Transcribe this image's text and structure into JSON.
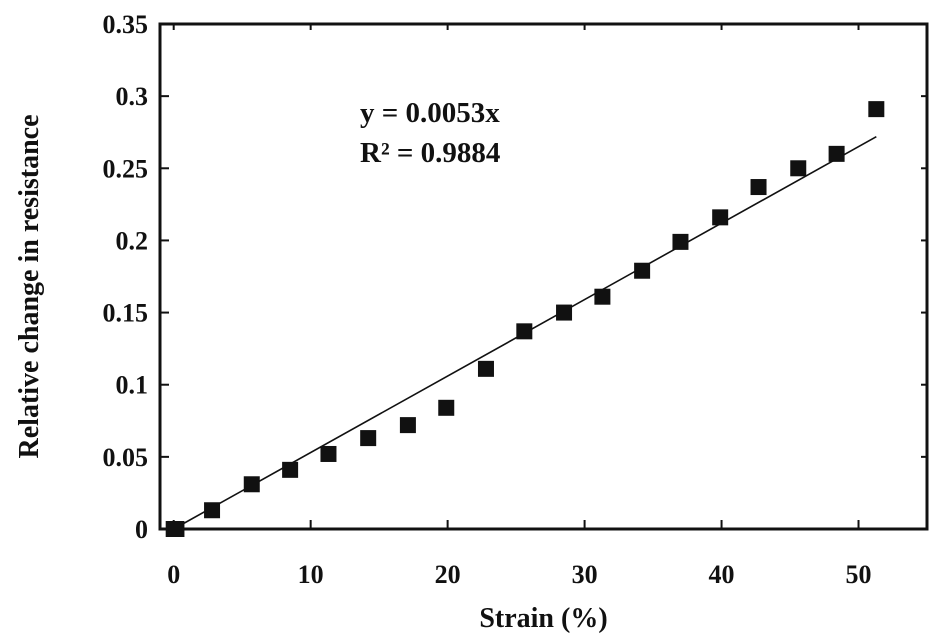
{
  "chart_data": {
    "type": "scatter",
    "title": "",
    "xlabel": "Strain (%)",
    "ylabel": "Relative change in resistance",
    "xlim": [
      -1,
      55
    ],
    "ylim": [
      0,
      0.35
    ],
    "xticks": [
      0,
      10,
      20,
      30,
      40,
      50
    ],
    "xtick_labels": [
      "0",
      "10",
      "20",
      "30",
      "40",
      "50"
    ],
    "yticks": [
      0,
      0.05,
      0.1,
      0.15,
      0.2,
      0.25,
      0.3,
      0.35
    ],
    "ytick_labels": [
      "0",
      "0.05",
      "0.1",
      "0.15",
      "0.2",
      "0.25",
      "0.3",
      "0.35"
    ],
    "grid": false,
    "legend": "none",
    "marker": "square",
    "marker_color": "#111111",
    "series": [
      {
        "x": [
          0,
          0.2,
          2.8,
          5.7,
          8.5,
          11.3,
          14.2,
          17.1,
          19.9,
          22.8,
          25.6,
          28.5,
          31.3,
          34.2,
          37.0,
          39.9,
          42.7,
          45.6,
          48.4,
          51.3
        ],
        "y": [
          0.0,
          0.0,
          0.013,
          0.031,
          0.041,
          0.052,
          0.063,
          0.072,
          0.084,
          0.111,
          0.137,
          0.15,
          0.161,
          0.179,
          0.199,
          0.216,
          0.237,
          0.25,
          0.26,
          0.291
        ]
      }
    ],
    "fit": {
      "slope": 0.0053,
      "intercept": 0,
      "x_range": [
        0,
        51.3
      ],
      "line_color": "#111111"
    },
    "annotations": [
      {
        "id": "equation",
        "text": "y = 0.0053x"
      },
      {
        "id": "r2",
        "text": "R² = 0.9884"
      }
    ]
  }
}
